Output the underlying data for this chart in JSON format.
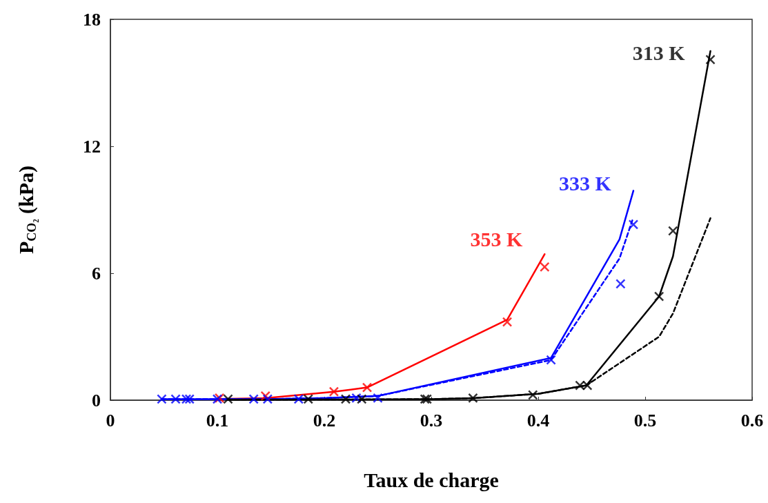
{
  "chart_data": {
    "type": "scatter",
    "xlabel": "Taux de charge",
    "ylabel": "P$_{CO₂}$ (kPa)",
    "xlim": [
      0,
      0.6
    ],
    "xticks": [
      0,
      0.1,
      0.2,
      0.3,
      0.4,
      0.5,
      0.6
    ],
    "ylim": [
      0,
      18
    ],
    "yticks": [
      0,
      6,
      12,
      18
    ],
    "grid": false,
    "legend": false,
    "marker": "cross",
    "series": [
      {
        "type": "line",
        "marker": "none",
        "line_style": "solid",
        "color": "#ff0000",
        "x": [
          0.102,
          0.145,
          0.209,
          0.24,
          0.371,
          0.406
        ],
        "values": [
          0.06,
          0.1,
          0.4,
          0.6,
          3.8,
          6.9
        ]
      },
      {
        "type": "line",
        "marker": "none",
        "line_style": "solid",
        "color": "#0000ff",
        "x": [
          0.048,
          0.1,
          0.147,
          0.2,
          0.25,
          0.412,
          0.476,
          0.489
        ],
        "values": [
          0.05,
          0.05,
          0.05,
          0.1,
          0.2,
          2.0,
          7.6,
          9.9
        ]
      },
      {
        "type": "line",
        "marker": "none",
        "line_style": "dashed",
        "color": "#0000ff",
        "x": [
          0.048,
          0.1,
          0.147,
          0.2,
          0.25,
          0.412,
          0.476,
          0.488
        ],
        "values": [
          0.05,
          0.05,
          0.05,
          0.1,
          0.2,
          1.9,
          6.7,
          8.5
        ]
      },
      {
        "type": "line",
        "marker": "none",
        "line_style": "solid",
        "color": "#000000",
        "x": [
          0.11,
          0.2,
          0.3,
          0.34,
          0.4,
          0.445,
          0.513,
          0.526,
          0.561
        ],
        "values": [
          0.02,
          0.03,
          0.05,
          0.1,
          0.3,
          0.7,
          4.9,
          6.8,
          16.5
        ]
      },
      {
        "type": "line",
        "marker": "none",
        "line_style": "dashed",
        "color": "#000000",
        "x": [
          0.11,
          0.2,
          0.3,
          0.34,
          0.4,
          0.445,
          0.513,
          0.526,
          0.561
        ],
        "values": [
          0.02,
          0.03,
          0.05,
          0.1,
          0.3,
          0.7,
          3.0,
          4.1,
          8.6
        ]
      },
      {
        "name": "353 K",
        "color": "#ff0000",
        "x": [
          0.102,
          0.145,
          0.209,
          0.24,
          0.371,
          0.406
        ],
        "values": [
          0.1,
          0.2,
          0.4,
          0.6,
          3.7,
          6.3
        ]
      },
      {
        "name": "333 K",
        "color": "#0000ff",
        "x": [
          0.048,
          0.061,
          0.071,
          0.074,
          0.1,
          0.134,
          0.147,
          0.176,
          0.23,
          0.25,
          0.412,
          0.477,
          0.489
        ],
        "values": [
          0.05,
          0.05,
          0.05,
          0.05,
          0.05,
          0.05,
          0.05,
          0.05,
          0.1,
          0.1,
          1.9,
          5.5,
          8.3
        ]
      },
      {
        "name": "313 K",
        "color": "#000000",
        "x": [
          0.11,
          0.185,
          0.22,
          0.235,
          0.294,
          0.296,
          0.339,
          0.395,
          0.439,
          0.446,
          0.513,
          0.526,
          0.561
        ],
        "values": [
          0.05,
          0.05,
          0.05,
          0.05,
          0.05,
          0.05,
          0.1,
          0.25,
          0.7,
          0.7,
          4.9,
          8.0,
          16.1
        ]
      }
    ]
  }
}
